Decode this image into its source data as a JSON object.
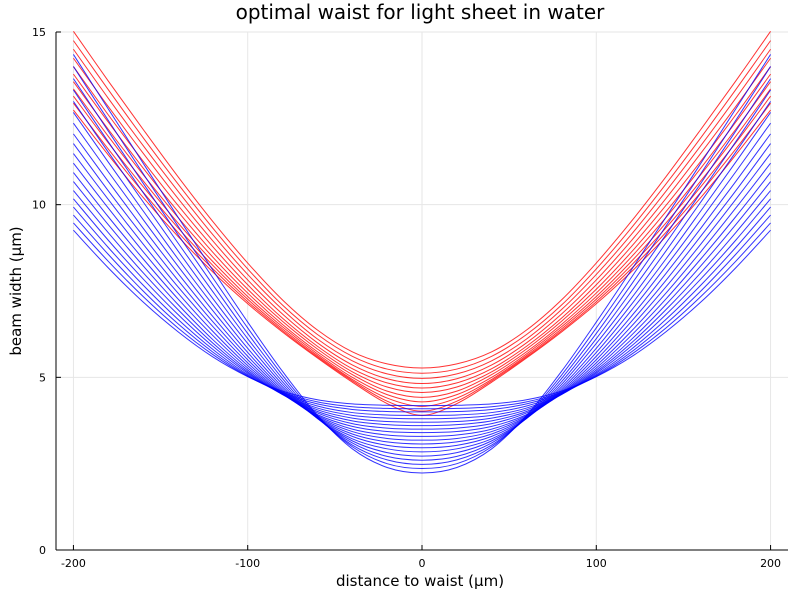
{
  "chart_data": {
    "type": "line",
    "title": "optimal waist for light sheet in water",
    "xlabel": "distance to waist (µm)",
    "ylabel": "beam width (µm)",
    "xlim": [
      -210,
      210
    ],
    "ylim": [
      0,
      15
    ],
    "xticks": [
      -200,
      -100,
      0,
      100,
      200
    ],
    "yticks": [
      0,
      5,
      10,
      15
    ],
    "grid": true,
    "legend": "none",
    "colors": {
      "red": "#ff0000",
      "blue": "#0000ff"
    },
    "x": [
      -200,
      -180,
      -160,
      -140,
      -120,
      -100,
      -80,
      -60,
      -40,
      -20,
      0,
      20,
      40,
      60,
      80,
      100,
      120,
      140,
      160,
      180,
      200
    ],
    "series": [
      {
        "color": "red",
        "values": [
          15.02,
          13.58,
          12.18,
          10.81,
          9.51,
          8.31,
          7.24,
          6.37,
          5.74,
          5.39,
          5.27,
          5.39,
          5.74,
          6.37,
          7.24,
          8.31,
          9.51,
          10.81,
          12.18,
          13.58,
          15.02
        ]
      },
      {
        "color": "red",
        "values": [
          14.75,
          13.33,
          11.94,
          10.6,
          9.32,
          8.14,
          7.09,
          6.24,
          5.61,
          5.24,
          5.12,
          5.24,
          5.61,
          6.24,
          7.09,
          8.14,
          9.32,
          10.6,
          11.94,
          13.33,
          14.75
        ]
      },
      {
        "color": "red",
        "values": [
          14.5,
          13.08,
          11.71,
          10.39,
          9.13,
          7.98,
          6.96,
          6.11,
          5.48,
          5.1,
          4.97,
          5.1,
          5.48,
          6.11,
          6.96,
          7.98,
          9.13,
          10.39,
          11.71,
          13.08,
          14.5
        ]
      },
      {
        "color": "red",
        "values": [
          14.24,
          12.84,
          11.49,
          10.18,
          8.95,
          7.82,
          6.83,
          6.0,
          5.36,
          4.96,
          4.82,
          4.96,
          5.36,
          6.0,
          6.83,
          7.82,
          8.95,
          10.18,
          11.49,
          12.84,
          14.24
        ]
      },
      {
        "color": "red",
        "values": [
          14.0,
          12.6,
          11.26,
          9.98,
          8.78,
          7.68,
          6.71,
          5.9,
          5.25,
          4.84,
          4.69,
          4.84,
          5.25,
          5.9,
          6.71,
          7.68,
          8.78,
          9.98,
          11.26,
          12.6,
          14.0
        ]
      },
      {
        "color": "red",
        "values": [
          13.78,
          12.39,
          11.06,
          9.8,
          8.62,
          7.55,
          6.62,
          5.82,
          5.16,
          4.72,
          4.56,
          4.72,
          5.16,
          5.82,
          6.62,
          7.55,
          8.62,
          9.8,
          11.06,
          12.39,
          13.78
        ]
      },
      {
        "color": "red",
        "values": [
          13.56,
          12.18,
          10.87,
          9.63,
          8.48,
          7.44,
          6.53,
          5.74,
          5.08,
          4.6,
          4.42,
          4.6,
          5.08,
          5.74,
          6.53,
          7.44,
          8.48,
          9.63,
          10.87,
          12.18,
          13.56
        ]
      },
      {
        "color": "red",
        "values": [
          13.35,
          11.98,
          10.69,
          9.47,
          8.35,
          7.34,
          6.46,
          5.68,
          5.0,
          4.5,
          4.29,
          4.5,
          5.0,
          5.68,
          6.46,
          7.34,
          8.35,
          9.47,
          10.69,
          11.98,
          13.35
        ]
      },
      {
        "color": "red",
        "values": [
          13.14,
          11.79,
          10.52,
          9.33,
          8.24,
          7.26,
          6.4,
          5.63,
          4.94,
          4.4,
          4.16,
          4.4,
          4.94,
          5.63,
          6.4,
          7.26,
          8.24,
          9.33,
          10.52,
          11.79,
          13.14
        ]
      },
      {
        "color": "red",
        "values": [
          12.94,
          11.61,
          10.36,
          9.2,
          8.14,
          7.19,
          6.35,
          5.59,
          4.9,
          4.31,
          4.02,
          4.31,
          4.9,
          5.59,
          6.35,
          7.19,
          8.14,
          9.2,
          10.36,
          11.61,
          12.94
        ]
      },
      {
        "color": "red",
        "values": [
          12.74,
          11.44,
          10.21,
          9.08,
          8.05,
          7.13,
          6.31,
          5.56,
          4.86,
          4.24,
          3.9,
          4.24,
          4.86,
          5.56,
          6.31,
          7.13,
          8.05,
          9.08,
          10.21,
          11.44,
          12.74
        ]
      },
      {
        "color": "blue",
        "values": [
          14.35,
          12.77,
          11.2,
          9.64,
          8.1,
          6.6,
          5.17,
          3.9,
          2.93,
          2.39,
          2.23,
          2.39,
          2.93,
          3.9,
          5.17,
          6.6,
          8.1,
          9.64,
          11.2,
          12.77,
          14.35
        ]
      },
      {
        "color": "blue",
        "values": [
          14.0,
          12.44,
          10.9,
          9.38,
          7.88,
          6.43,
          5.06,
          3.87,
          2.99,
          2.5,
          2.36,
          2.5,
          2.99,
          3.87,
          5.06,
          6.43,
          7.88,
          9.38,
          10.9,
          12.44,
          14.0
        ]
      },
      {
        "color": "blue",
        "values": [
          13.65,
          12.13,
          10.62,
          9.13,
          7.68,
          6.27,
          4.96,
          3.84,
          3.04,
          2.61,
          2.48,
          2.61,
          3.04,
          3.84,
          4.96,
          6.27,
          7.68,
          9.13,
          10.62,
          12.13,
          13.65
        ]
      },
      {
        "color": "blue",
        "values": [
          13.32,
          11.82,
          10.35,
          8.89,
          7.48,
          6.12,
          4.87,
          3.82,
          3.1,
          2.71,
          2.6,
          2.71,
          3.1,
          3.82,
          4.87,
          6.12,
          7.48,
          8.89,
          10.35,
          11.82,
          13.32
        ]
      },
      {
        "color": "blue",
        "values": [
          12.99,
          11.52,
          10.08,
          8.66,
          7.28,
          5.98,
          4.79,
          3.81,
          3.16,
          2.82,
          2.72,
          2.82,
          3.16,
          3.81,
          4.79,
          5.98,
          7.28,
          8.66,
          10.08,
          11.52,
          12.99
        ]
      },
      {
        "color": "blue",
        "values": [
          12.67,
          11.23,
          9.82,
          8.43,
          7.1,
          5.84,
          4.72,
          3.81,
          3.22,
          2.93,
          2.84,
          2.93,
          3.22,
          3.81,
          4.72,
          5.84,
          7.1,
          8.43,
          9.82,
          11.23,
          12.67
        ]
      },
      {
        "color": "blue",
        "values": [
          12.36,
          10.95,
          9.57,
          8.22,
          6.93,
          5.72,
          4.66,
          3.82,
          3.29,
          3.03,
          2.96,
          3.03,
          3.29,
          3.82,
          4.66,
          5.72,
          6.93,
          8.22,
          9.57,
          10.95,
          12.36
        ]
      },
      {
        "color": "blue",
        "values": [
          12.05,
          10.67,
          9.32,
          8.01,
          6.76,
          5.61,
          4.61,
          3.84,
          3.36,
          3.13,
          3.07,
          3.13,
          3.36,
          3.84,
          4.61,
          5.61,
          6.76,
          8.01,
          9.32,
          10.67,
          12.05
        ]
      },
      {
        "color": "blue",
        "values": [
          11.77,
          10.4,
          9.09,
          7.81,
          6.61,
          5.51,
          4.57,
          3.86,
          3.43,
          3.23,
          3.18,
          3.23,
          3.43,
          3.86,
          4.57,
          5.51,
          6.61,
          7.81,
          9.09,
          10.4,
          11.77
        ]
      },
      {
        "color": "blue",
        "values": [
          11.48,
          10.15,
          8.86,
          7.62,
          6.47,
          5.42,
          4.54,
          3.89,
          3.5,
          3.33,
          3.29,
          3.33,
          3.5,
          3.89,
          4.54,
          5.42,
          6.47,
          7.62,
          8.86,
          10.15,
          11.48
        ]
      },
      {
        "color": "blue",
        "values": [
          11.2,
          9.9,
          8.64,
          7.44,
          6.33,
          5.34,
          4.52,
          3.92,
          3.58,
          3.43,
          3.4,
          3.43,
          3.58,
          3.92,
          4.52,
          5.34,
          6.33,
          7.44,
          8.64,
          9.9,
          11.2
        ]
      },
      {
        "color": "blue",
        "values": [
          10.93,
          9.65,
          8.43,
          7.27,
          6.21,
          5.27,
          4.51,
          3.97,
          3.66,
          3.53,
          3.5,
          3.53,
          3.66,
          3.97,
          4.51,
          5.27,
          6.21,
          7.27,
          8.43,
          9.65,
          10.93
        ]
      },
      {
        "color": "blue",
        "values": [
          10.67,
          9.42,
          8.23,
          7.11,
          6.09,
          5.21,
          4.5,
          4.01,
          3.74,
          3.63,
          3.6,
          3.63,
          3.74,
          4.01,
          4.5,
          5.21,
          6.09,
          7.11,
          8.23,
          9.42,
          10.67
        ]
      },
      {
        "color": "blue",
        "values": [
          10.41,
          9.19,
          8.03,
          6.96,
          5.99,
          5.16,
          4.5,
          4.06,
          3.82,
          3.72,
          3.7,
          3.72,
          3.82,
          4.06,
          4.5,
          5.16,
          5.99,
          6.96,
          8.03,
          9.19,
          10.41
        ]
      },
      {
        "color": "blue",
        "values": [
          10.17,
          8.97,
          7.85,
          6.82,
          5.9,
          5.12,
          4.51,
          4.11,
          3.9,
          3.82,
          3.8,
          3.82,
          3.9,
          4.11,
          4.51,
          5.12,
          5.9,
          6.82,
          7.85,
          8.97,
          10.17
        ]
      },
      {
        "color": "blue",
        "values": [
          9.93,
          8.76,
          7.67,
          6.68,
          5.81,
          5.08,
          4.53,
          4.17,
          3.98,
          3.91,
          3.9,
          3.91,
          3.98,
          4.17,
          4.53,
          5.08,
          5.81,
          6.68,
          7.67,
          8.76,
          9.93
        ]
      },
      {
        "color": "blue",
        "values": [
          9.7,
          8.56,
          7.5,
          6.55,
          5.73,
          5.05,
          4.55,
          4.23,
          4.07,
          4.01,
          4.0,
          4.01,
          4.07,
          4.23,
          4.55,
          5.05,
          5.73,
          6.55,
          7.5,
          8.56,
          9.7
        ]
      },
      {
        "color": "blue",
        "values": [
          9.47,
          8.36,
          7.34,
          6.43,
          5.66,
          5.03,
          4.57,
          4.29,
          4.15,
          4.1,
          4.09,
          4.1,
          4.15,
          4.29,
          4.57,
          5.03,
          5.66,
          6.43,
          7.34,
          8.36,
          9.47
        ]
      },
      {
        "color": "blue",
        "values": [
          9.26,
          8.17,
          7.18,
          6.32,
          5.59,
          5.02,
          4.6,
          4.35,
          4.23,
          4.19,
          4.18,
          4.19,
          4.23,
          4.35,
          4.6,
          5.02,
          5.59,
          6.32,
          7.18,
          8.17,
          9.26
        ]
      }
    ]
  }
}
